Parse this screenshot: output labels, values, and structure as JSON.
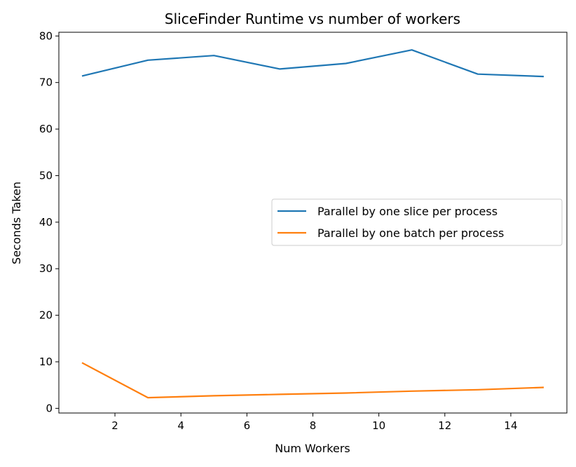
{
  "chart_data": {
    "type": "line",
    "title": "SliceFinder Runtime vs number of workers",
    "xlabel": "Num Workers",
    "ylabel": "Seconds Taken",
    "xlim": [
      0.3,
      15.7
    ],
    "ylim": [
      -1.0,
      80.8
    ],
    "xticks": [
      2,
      4,
      6,
      8,
      10,
      12,
      14
    ],
    "yticks": [
      0,
      10,
      20,
      30,
      40,
      50,
      60,
      70,
      80
    ],
    "grid": false,
    "legend_position": "center-right",
    "x": [
      1,
      3,
      5,
      7,
      9,
      11,
      13,
      15
    ],
    "series": [
      {
        "name": "Parallel by one slice per process",
        "color": "#1f77b4",
        "values": [
          71.4,
          74.8,
          75.8,
          72.9,
          74.1,
          77.0,
          71.8,
          71.3
        ]
      },
      {
        "name": "Parallel by one batch per process",
        "color": "#ff7f0e",
        "values": [
          9.8,
          2.3,
          2.7,
          3.0,
          3.3,
          3.7,
          4.0,
          4.5
        ]
      }
    ]
  }
}
